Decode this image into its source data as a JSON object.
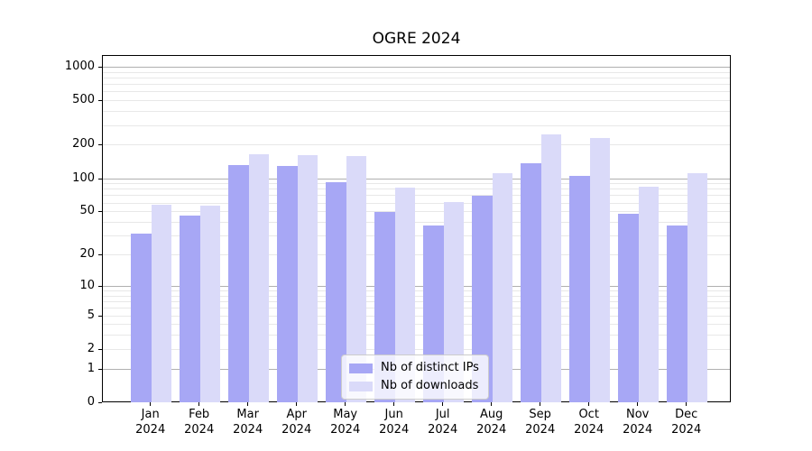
{
  "title": "OGRE 2024",
  "colors": {
    "ips": "#a7a7f5",
    "downloads": "#dadaf9",
    "grid_major": "#b0b0b0",
    "grid_minor": "#e8e8e8",
    "legend_border": "#cccccc",
    "text": "#000000"
  },
  "legend": {
    "items": [
      {
        "label": "Nb of distinct IPs",
        "series": "ips"
      },
      {
        "label": "Nb of downloads",
        "series": "downloads"
      }
    ]
  },
  "y_axis": {
    "ticks": [
      0,
      1,
      2,
      5,
      10,
      20,
      50,
      100,
      200,
      500,
      1000
    ]
  },
  "x_axis": {
    "months": [
      "Jan",
      "Feb",
      "Mar",
      "Apr",
      "May",
      "Jun",
      "Jul",
      "Aug",
      "Sep",
      "Oct",
      "Nov",
      "Dec"
    ],
    "year": "2024"
  },
  "chart_data": {
    "type": "bar",
    "title": "OGRE 2024",
    "categories": [
      "Jan 2024",
      "Feb 2024",
      "Mar 2024",
      "Apr 2024",
      "May 2024",
      "Jun 2024",
      "Jul 2024",
      "Aug 2024",
      "Sep 2024",
      "Oct 2024",
      "Nov 2024",
      "Dec 2024"
    ],
    "series": [
      {
        "name": "Nb of distinct IPs",
        "key": "ips",
        "values": [
          32,
          47,
          133,
          131,
          93,
          50,
          38,
          71,
          140,
          106,
          48,
          38
        ]
      },
      {
        "name": "Nb of downloads",
        "key": "downloads",
        "values": [
          58,
          57,
          166,
          163,
          162,
          83,
          62,
          112,
          250,
          232,
          86,
          113
        ]
      }
    ],
    "xlabel": "",
    "ylabel": "",
    "yscale": "log10(value+1), 0 at baseline",
    "y_ticks": [
      0,
      1,
      2,
      5,
      10,
      20,
      50,
      100,
      200,
      500,
      1000
    ],
    "ylim": [
      0,
      1270
    ],
    "grid": {
      "major_lines": [
        1,
        10,
        100,
        1000
      ],
      "minor_subs": [
        2,
        3,
        4,
        5,
        6,
        7,
        8,
        9
      ]
    },
    "legend_position": "lower center"
  }
}
